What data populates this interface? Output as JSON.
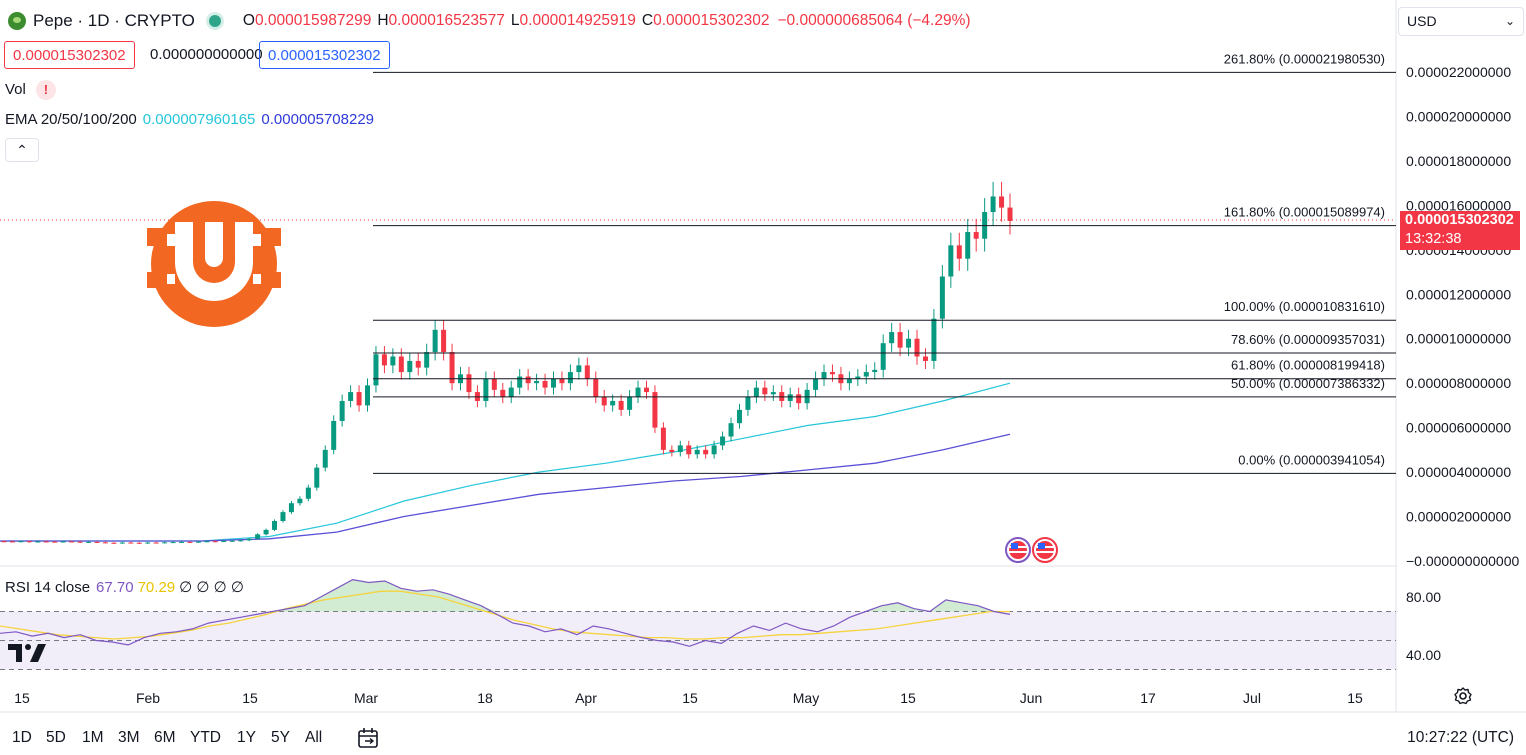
{
  "header": {
    "symbol": "Pepe · 1D · CRYPTO",
    "o_label": "O",
    "o_value": "0.000015987299",
    "h_label": "H",
    "h_value": "0.000016523577",
    "l_label": "L",
    "l_value": "0.000014925919",
    "c_label": "C",
    "c_value": "0.000015302302",
    "change": "−0.000000685064 (−4.29%)"
  },
  "trade": {
    "bid": "0.000015302302",
    "spread": "0.000000000000",
    "ask": "0.000015302302"
  },
  "indicators": {
    "vol_label": "Vol",
    "vol_warning": "!",
    "ema_label": "EMA 20/50/100/200",
    "ema_value_1": "0.000007960165",
    "ema_value_2": "0.000005708229",
    "collapse_glyph": "⌃"
  },
  "currency": {
    "label": "USD",
    "chevron": "⌄"
  },
  "price_tag": {
    "price": "0.000015302302",
    "countdown": "13:32:38"
  },
  "rsi": {
    "label": "RSI 14 close",
    "value": "67.70",
    "ma_value": "70.29",
    "zeros": "∅ ∅ ∅ ∅"
  },
  "bottom_bar": {
    "timeframes": [
      "1D",
      "5D",
      "1M",
      "3M",
      "6M",
      "YTD",
      "1Y",
      "5Y",
      "All"
    ],
    "clock": "10:27:22 (UTC)"
  },
  "colors": {
    "up": "#089981",
    "down": "#f23645",
    "ema_fast": "#26c6da",
    "ema_slow": "#5b4fd6",
    "rsi_line": "#7e57c2",
    "rsi_ma": "#f5d33c",
    "logo": "#f26822"
  },
  "icons": [
    "pepe-symbol-icon",
    "live-status-icon",
    "warning-icon",
    "collapse-chevron-icon",
    "chevron-down-icon",
    "calendar-range-icon",
    "settings-gear-icon",
    "tradingview-logo-icon",
    "us-flag-event-icon",
    "brand-logo-icon"
  ],
  "chart_data": {
    "type": "candlestick",
    "price_axis_ticks": [
      "0.000022000000",
      "0.000020000000",
      "0.000018000000",
      "0.000016000000",
      "0.000014000000",
      "0.000012000000",
      "0.000010000000",
      "0.000008000000",
      "0.000006000000",
      "0.000004000000",
      "0.000002000000",
      "−0.000000000000"
    ],
    "ylim": [
      -5e-07,
      2.3e-05
    ],
    "time_axis_ticks": [
      "15",
      "Feb",
      "15",
      "Mar",
      "18",
      "Apr",
      "15",
      "May",
      "15",
      "Jun",
      "17",
      "Jul",
      "15"
    ],
    "fib_levels": [
      {
        "label": "261.80% (0.000021980530)",
        "value": 2.198053e-05
      },
      {
        "label": "161.80% (0.000015089974)",
        "value": 1.5089974e-05
      },
      {
        "label": "100.00% (0.000010831610)",
        "value": 1.083161e-05
      },
      {
        "label": "78.60% (0.000009357031)",
        "value": 9.357031e-06
      },
      {
        "label": "61.80% (0.000008199418)",
        "value": 8.199418e-06
      },
      {
        "label": "50.00% (0.000007386332)",
        "value": 7.386332e-06
      },
      {
        "label": "0.00% (0.000003941054)",
        "value": 3.941054e-06
      }
    ],
    "candle_closes": [
      8.8e-07,
      8.7e-07,
      8.9e-07,
      8.6e-07,
      8.8e-07,
      8.7e-07,
      8.6e-07,
      8.8e-07,
      8.7e-07,
      8.5e-07,
      8.6e-07,
      8.4e-07,
      8.2e-07,
      8.1e-07,
      8.3e-07,
      8.2e-07,
      8.1e-07,
      8.3e-07,
      8.2e-07,
      8.4e-07,
      8.5e-07,
      8.6e-07,
      8.5e-07,
      8.7e-07,
      8.9e-07,
      8.8e-07,
      9e-07,
      9.1e-07,
      9.3e-07,
      1e-06,
      1.2e-06,
      1.4e-06,
      1.8e-06,
      2.2e-06,
      2.6e-06,
      2.8e-06,
      3.3e-06,
      4.2e-06,
      5e-06,
      6.3e-06,
      7.2e-06,
      7.6e-06,
      7e-06,
      7.9e-06,
      9.3e-06,
      8.8e-06,
      9.2e-06,
      8.5e-06,
      9e-06,
      8.7e-06,
      9.4e-06,
      1.04e-05,
      9.4e-06,
      8e-06,
      8.4e-06,
      7.6e-06,
      7.2e-06,
      8.2e-06,
      7.7e-06,
      7.4e-06,
      7.8e-06,
      8.3e-06,
      8e-06,
      8.1e-06,
      7.8e-06,
      8.2e-06,
      8e-06,
      8.5e-06,
      8.8e-06,
      8.2e-06,
      7.4e-06,
      7e-06,
      7.2e-06,
      6.8e-06,
      7.4e-06,
      7.8e-06,
      7.6e-06,
      6e-06,
      5e-06,
      4.9e-06,
      5.2e-06,
      4.8e-06,
      5e-06,
      4.8e-06,
      5.2e-06,
      5.6e-06,
      6.2e-06,
      6.8e-06,
      7.4e-06,
      7.8e-06,
      7.5e-06,
      7.6e-06,
      7.2e-06,
      7.5e-06,
      7.1e-06,
      7.7e-06,
      8.2e-06,
      8.5e-06,
      8.4e-06,
      8e-06,
      8.2e-06,
      8.3e-06,
      8.5e-06,
      8.6e-06,
      9.8e-06,
      1.03e-05,
      9.6e-06,
      1e-05,
      9.2e-06,
      9e-06,
      1.09e-05,
      1.28e-05,
      1.42e-05,
      1.36e-05,
      1.48e-05,
      1.45e-05,
      1.57e-05,
      1.64e-05,
      1.59e-05,
      1.53e-05
    ],
    "ema_fast_series": [
      9e-07,
      9e-07,
      9e-07,
      9e-07,
      1.1e-06,
      1.7e-06,
      2.7e-06,
      3.4e-06,
      4e-06,
      4.4e-06,
      4.9e-06,
      5.5e-06,
      6.1e-06,
      6.5e-06,
      7.2e-06,
      8e-06
    ],
    "ema_slow_series": [
      9e-07,
      9e-07,
      9e-07,
      9e-07,
      1e-06,
      1.3e-06,
      2e-06,
      2.5e-06,
      3e-06,
      3.3e-06,
      3.6e-06,
      3.8e-06,
      4.1e-06,
      4.4e-06,
      5e-06,
      5.7e-06
    ],
    "rsi_ylim": [
      30,
      95
    ],
    "rsi_ticks": [
      "80.00",
      "40.00"
    ],
    "rsi_band": [
      70,
      30
    ],
    "rsi_values": [
      55,
      56,
      53,
      55,
      52,
      54,
      50,
      49,
      47,
      52,
      55,
      56,
      58,
      62,
      64,
      66,
      68,
      70,
      72,
      74,
      80,
      86,
      92,
      90,
      91,
      86,
      84,
      85,
      82,
      78,
      74,
      68,
      62,
      60,
      56,
      58,
      54,
      60,
      58,
      55,
      52,
      50,
      49,
      46,
      50,
      48,
      55,
      60,
      57,
      62,
      58,
      56,
      60,
      66,
      70,
      74,
      76,
      72,
      70,
      78,
      76,
      74,
      70,
      68
    ],
    "rsi_ma_values": [
      60,
      58,
      56,
      54,
      53,
      52,
      51,
      52,
      53,
      55,
      57,
      60,
      62,
      65,
      68,
      72,
      75,
      78,
      80,
      82,
      84,
      84,
      82,
      80,
      76,
      72,
      68,
      64,
      61,
      58,
      56,
      55,
      54,
      53,
      52,
      52,
      51,
      51,
      52,
      52,
      53,
      54,
      54,
      55,
      56,
      57,
      58,
      60,
      62,
      64,
      66,
      68,
      70,
      70
    ]
  }
}
